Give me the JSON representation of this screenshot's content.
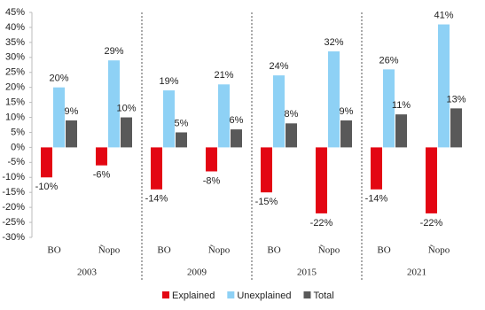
{
  "chart_data": {
    "type": "bar",
    "categories": [
      "BO",
      "Ñopo",
      "BO",
      "Ñopo",
      "BO",
      "Ñopo",
      "BO",
      "Ñopo"
    ],
    "groups": [
      "2003",
      "2009",
      "2015",
      "2021"
    ],
    "series": [
      {
        "name": "Explained",
        "color": "#e30613",
        "values": [
          -10,
          -6,
          -14,
          -8,
          -15,
          -22,
          -14,
          -22
        ],
        "value_labels": [
          "-10%",
          "-6%",
          "-14%",
          "-8%",
          "-15%",
          "-22%",
          "-14%",
          "-22%"
        ]
      },
      {
        "name": "Unexplained",
        "color": "#8ed1f5",
        "values": [
          20,
          29,
          19,
          21,
          24,
          32,
          26,
          41
        ],
        "value_labels": [
          "20%",
          "29%",
          "19%",
          "21%",
          "24%",
          "32%",
          "26%",
          "41%"
        ]
      },
      {
        "name": "Total",
        "color": "#595959",
        "values": [
          9,
          10,
          5,
          6,
          8,
          9,
          11,
          13
        ],
        "value_labels": [
          "9%",
          "10%",
          "5%",
          "6%",
          "8%",
          "9%",
          "11%",
          "13%"
        ]
      }
    ],
    "ylim": [
      -30,
      45
    ],
    "yticks": [
      {
        "value": -30,
        "label": "-30%"
      },
      {
        "value": -25,
        "label": "-25%"
      },
      {
        "value": -20,
        "label": "-20%"
      },
      {
        "value": -15,
        "label": "-15%"
      },
      {
        "value": -10,
        "label": "-10%"
      },
      {
        "value": -5,
        "label": "-5%"
      },
      {
        "value": 0,
        "label": "0%"
      },
      {
        "value": 5,
        "label": "5%"
      },
      {
        "value": 10,
        "label": "10%"
      },
      {
        "value": 15,
        "label": "15%"
      },
      {
        "value": 20,
        "label": "20%"
      },
      {
        "value": 25,
        "label": "25%"
      },
      {
        "value": 30,
        "label": "30%"
      },
      {
        "value": 35,
        "label": "35%"
      },
      {
        "value": 40,
        "label": "40%"
      },
      {
        "value": 45,
        "label": "45%"
      }
    ]
  }
}
